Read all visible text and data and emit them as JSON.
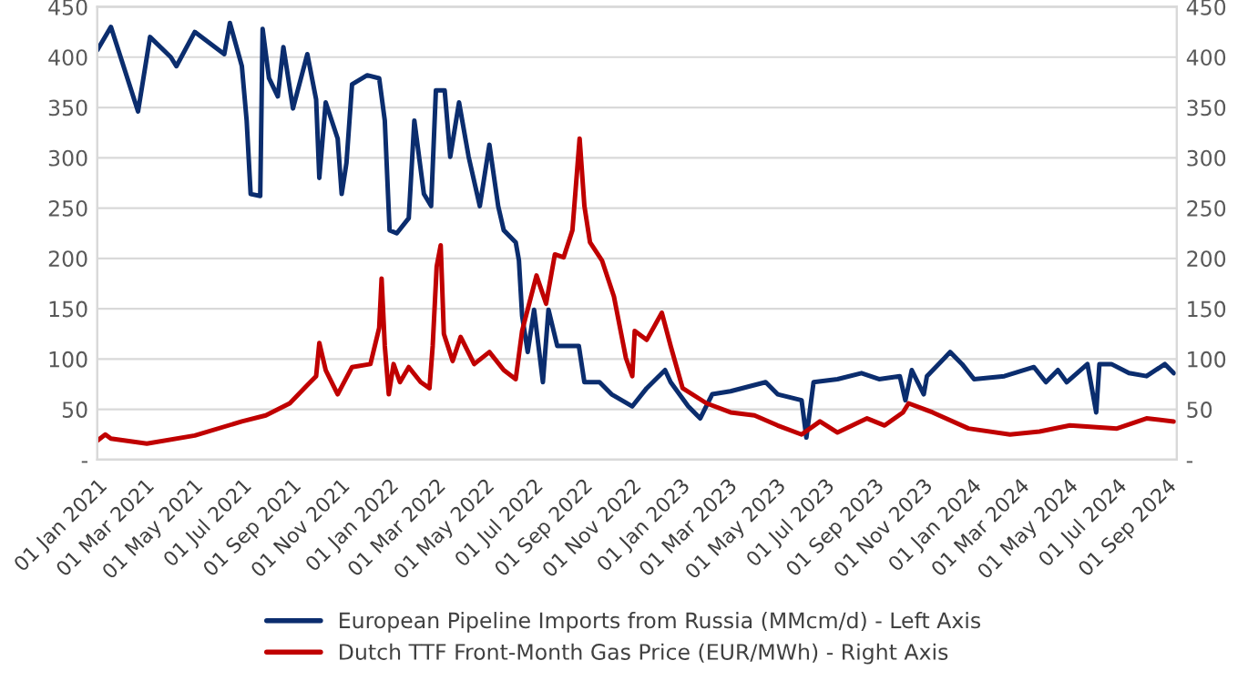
{
  "chart_data": {
    "type": "line",
    "xlim": [
      "2021-01-01",
      "2024-09-14"
    ],
    "xticks": [
      {
        "value": "2021-01-01",
        "label": "01 Jan 2021"
      },
      {
        "value": "2021-03-01",
        "label": "01 Mar 2021"
      },
      {
        "value": "2021-05-01",
        "label": "01 May 2021"
      },
      {
        "value": "2021-07-01",
        "label": "01 Jul 2021"
      },
      {
        "value": "2021-09-01",
        "label": "01 Sep 2021"
      },
      {
        "value": "2021-11-01",
        "label": "01 Nov 2021"
      },
      {
        "value": "2022-01-01",
        "label": "01 Jan 2022"
      },
      {
        "value": "2022-03-01",
        "label": "01 Mar 2022"
      },
      {
        "value": "2022-05-01",
        "label": "01 May 2022"
      },
      {
        "value": "2022-07-01",
        "label": "01 Jul 2022"
      },
      {
        "value": "2022-09-01",
        "label": "01 Sep 2022"
      },
      {
        "value": "2022-11-01",
        "label": "01 Nov 2022"
      },
      {
        "value": "2023-01-01",
        "label": "01 Jan 2023"
      },
      {
        "value": "2023-03-01",
        "label": "01 Mar 2023"
      },
      {
        "value": "2023-05-01",
        "label": "01 May 2023"
      },
      {
        "value": "2023-07-01",
        "label": "01 Jul 2023"
      },
      {
        "value": "2023-09-01",
        "label": "01 Sep 2023"
      },
      {
        "value": "2023-11-01",
        "label": "01 Nov 2023"
      },
      {
        "value": "2024-01-01",
        "label": "01 Jan 2024"
      },
      {
        "value": "2024-03-01",
        "label": "01 Mar 2024"
      },
      {
        "value": "2024-05-01",
        "label": "01 May 2024"
      },
      {
        "value": "2024-07-01",
        "label": "01 Jul 2024"
      },
      {
        "value": "2024-09-01",
        "label": "01 Sep 2024"
      }
    ],
    "ylim": [
      0,
      450
    ],
    "yticks": [
      {
        "value": 0,
        "label": "-"
      },
      50,
      100,
      150,
      200,
      250,
      300,
      350,
      400,
      450
    ],
    "y2lim": [
      0,
      450
    ],
    "y2ticks": [
      {
        "value": 0,
        "label": "-"
      },
      50,
      100,
      150,
      200,
      250,
      300,
      350,
      400,
      450
    ],
    "grid": "y",
    "legend": "bottom",
    "marker": "none",
    "line_style": "solid",
    "series": [
      {
        "name": "European Pipeline Imports from Russia (MMcm/d) - Left Axis",
        "color": "#0b2d6e",
        "x": [
          "2021-01-01",
          "2021-01-18",
          "2021-02-21",
          "2021-03-08",
          "2021-04-03",
          "2021-04-10",
          "2021-05-03",
          "2021-06-09",
          "2021-06-16",
          "2021-07-01",
          "2021-07-07",
          "2021-07-12",
          "2021-07-24",
          "2021-07-27",
          "2021-08-04",
          "2021-08-15",
          "2021-08-22",
          "2021-09-03",
          "2021-09-21",
          "2021-10-02",
          "2021-10-06",
          "2021-10-14",
          "2021-10-29",
          "2021-11-03",
          "2021-11-09",
          "2021-11-16",
          "2021-12-05",
          "2021-12-20",
          "2021-12-27",
          "2022-01-02",
          "2022-01-11",
          "2022-01-26",
          "2022-02-02",
          "2022-02-14",
          "2022-02-23",
          "2022-03-01",
          "2022-03-12",
          "2022-03-19",
          "2022-03-30",
          "2022-04-11",
          "2022-04-25",
          "2022-05-07",
          "2022-05-18",
          "2022-05-25",
          "2022-06-09",
          "2022-06-13",
          "2022-06-17",
          "2022-06-24",
          "2022-07-02",
          "2022-07-13",
          "2022-07-20",
          "2022-07-31",
          "2022-08-27",
          "2022-09-03",
          "2022-09-22",
          "2022-10-07",
          "2022-11-02",
          "2022-11-20",
          "2022-12-13",
          "2022-12-20",
          "2023-01-11",
          "2023-01-26",
          "2023-02-10",
          "2023-03-05",
          "2023-04-18",
          "2023-05-03",
          "2023-06-02",
          "2023-06-08",
          "2023-06-17",
          "2023-07-17",
          "2023-08-16",
          "2023-09-07",
          "2023-10-03",
          "2023-10-10",
          "2023-10-18",
          "2023-11-02",
          "2023-11-06",
          "2023-11-28",
          "2023-12-05",
          "2023-12-20",
          "2024-01-04",
          "2024-02-11",
          "2024-03-19",
          "2024-04-03",
          "2024-04-18",
          "2024-04-29",
          "2024-05-25",
          "2024-06-05",
          "2024-06-09",
          "2024-06-24",
          "2024-07-16",
          "2024-08-07",
          "2024-08-30",
          "2024-09-10"
        ],
        "values": [
          407,
          430,
          346,
          420,
          400,
          391,
          425,
          403,
          434,
          391,
          337,
          264,
          262,
          428,
          379,
          361,
          410,
          349,
          403,
          358,
          280,
          355,
          319,
          264,
          295,
          373,
          382,
          379,
          337,
          228,
          225,
          240,
          337,
          264,
          252,
          367,
          367,
          301,
          355,
          301,
          252,
          313,
          252,
          228,
          216,
          198,
          143,
          107,
          149,
          77,
          149,
          113,
          113,
          77,
          77,
          65,
          53,
          71,
          89,
          77,
          53,
          41,
          65,
          68,
          77,
          65,
          59,
          22,
          77,
          80,
          86,
          80,
          83,
          59,
          89,
          65,
          83,
          101,
          107,
          95,
          80,
          83,
          92,
          77,
          89,
          77,
          95,
          47,
          95,
          95,
          86,
          83,
          95,
          86
        ]
      },
      {
        "name": "Dutch TTF Front-Month Gas Price (EUR/MWh) - Right Axis",
        "color": "#c00000",
        "axis": "y2",
        "x": [
          "2021-01-01",
          "2021-01-11",
          "2021-01-18",
          "2021-03-04",
          "2021-05-03",
          "2021-07-01",
          "2021-07-31",
          "2021-08-30",
          "2021-09-21",
          "2021-10-02",
          "2021-10-06",
          "2021-10-14",
          "2021-10-29",
          "2021-11-16",
          "2021-12-09",
          "2021-12-20",
          "2021-12-23",
          "2021-12-27",
          "2022-01-01",
          "2022-01-07",
          "2022-01-15",
          "2022-01-26",
          "2022-02-10",
          "2022-02-21",
          "2022-02-25",
          "2022-03-02",
          "2022-03-07",
          "2022-03-11",
          "2022-03-22",
          "2022-04-01",
          "2022-04-18",
          "2022-05-07",
          "2022-05-25",
          "2022-06-09",
          "2022-06-17",
          "2022-07-05",
          "2022-07-17",
          "2022-07-28",
          "2022-08-08",
          "2022-08-19",
          "2022-08-28",
          "2022-09-03",
          "2022-09-10",
          "2022-09-25",
          "2022-10-10",
          "2022-10-25",
          "2022-11-02",
          "2022-11-05",
          "2022-11-20",
          "2022-12-09",
          "2022-12-20",
          "2023-01-04",
          "2023-02-03",
          "2023-03-05",
          "2023-04-04",
          "2023-05-03",
          "2023-06-02",
          "2023-06-25",
          "2023-07-17",
          "2023-08-23",
          "2023-09-14",
          "2023-10-07",
          "2023-10-14",
          "2023-11-13",
          "2023-12-28",
          "2024-02-18",
          "2024-03-26",
          "2024-05-03",
          "2024-07-01",
          "2024-08-07",
          "2024-09-10"
        ],
        "values": [
          19,
          25,
          21,
          16,
          24,
          38,
          44,
          56,
          74,
          83,
          116,
          89,
          65,
          92,
          95,
          131,
          180,
          113,
          65,
          95,
          77,
          92,
          77,
          71,
          113,
          192,
          213,
          125,
          98,
          122,
          95,
          107,
          89,
          80,
          128,
          183,
          155,
          204,
          201,
          228,
          319,
          252,
          216,
          198,
          162,
          101,
          83,
          128,
          119,
          146,
          113,
          71,
          56,
          47,
          44,
          34,
          25,
          38,
          27,
          41,
          34,
          47,
          56,
          47,
          31,
          25,
          28,
          34,
          31,
          41,
          38
        ]
      }
    ]
  }
}
